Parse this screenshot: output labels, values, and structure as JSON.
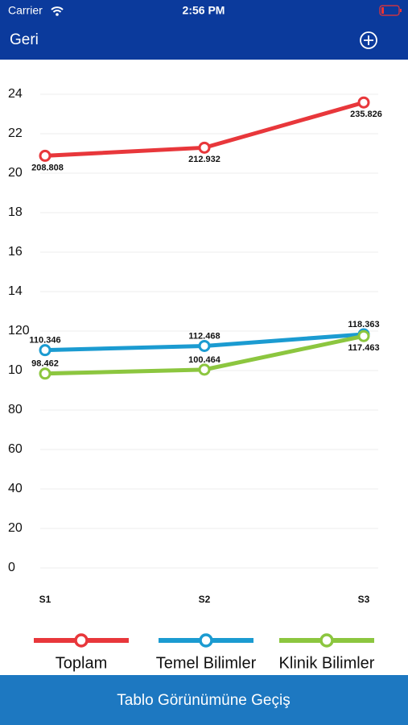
{
  "status_bar": {
    "carrier": "Carrier",
    "time": "2:56 PM"
  },
  "nav": {
    "back": "Geri"
  },
  "chart_data": {
    "type": "line",
    "categories": [
      "S1",
      "S2",
      "S3"
    ],
    "series": [
      {
        "name": "Toplam",
        "color": "#e8373b",
        "values": [
          208.808,
          212.932,
          235.826
        ]
      },
      {
        "name": "Temel Bilimler",
        "color": "#1b9bd1",
        "values": [
          110.346,
          112.468,
          118.363
        ]
      },
      {
        "name": "Klinik Bilimler",
        "color": "#8cc63f",
        "values": [
          98.462,
          100.464,
          117.463
        ]
      }
    ],
    "ylim": [
      0,
      240
    ],
    "yticks": [
      0,
      20,
      40,
      60,
      80,
      {
        "value": 100,
        "label": "10"
      },
      120,
      {
        "value": 140,
        "label": "14"
      },
      {
        "value": 160,
        "label": "16"
      },
      {
        "value": 180,
        "label": "18"
      },
      {
        "value": 200,
        "label": "20"
      },
      {
        "value": 220,
        "label": "22"
      },
      {
        "value": 240,
        "label": "24"
      }
    ],
    "grid": true
  },
  "button": {
    "label": "Tablo Görünümüne Geçiş"
  }
}
